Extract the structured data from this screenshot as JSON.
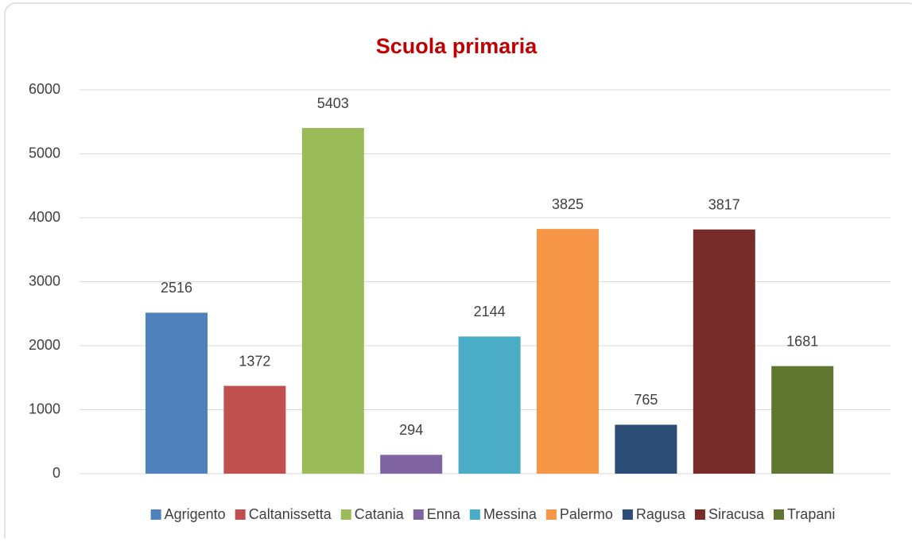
{
  "chart_data": {
    "type": "bar",
    "title": "Scuola primaria",
    "categories": [
      null
    ],
    "series": [
      {
        "name": "Agrigento",
        "color": "#4f81bd",
        "values": [
          2516
        ]
      },
      {
        "name": "Caltanissetta",
        "color": "#c0504d",
        "values": [
          1372
        ]
      },
      {
        "name": "Catania",
        "color": "#9bbb59",
        "values": [
          5403
        ]
      },
      {
        "name": "Enna",
        "color": "#8064a2",
        "values": [
          294
        ]
      },
      {
        "name": "Messina",
        "color": "#4bacc6",
        "values": [
          2144
        ]
      },
      {
        "name": "Palermo",
        "color": "#f79646",
        "values": [
          3825
        ]
      },
      {
        "name": "Ragusa",
        "color": "#2c4d75",
        "values": [
          765
        ]
      },
      {
        "name": "Siracusa",
        "color": "#772c2a",
        "values": [
          3817
        ]
      },
      {
        "name": "Trapani",
        "color": "#5f7530",
        "values": [
          1681
        ]
      }
    ],
    "ylim": [
      0,
      6000
    ],
    "yticks": [
      0,
      1000,
      2000,
      3000,
      4000,
      5000,
      6000
    ],
    "grid": true,
    "legend": "bottom"
  }
}
